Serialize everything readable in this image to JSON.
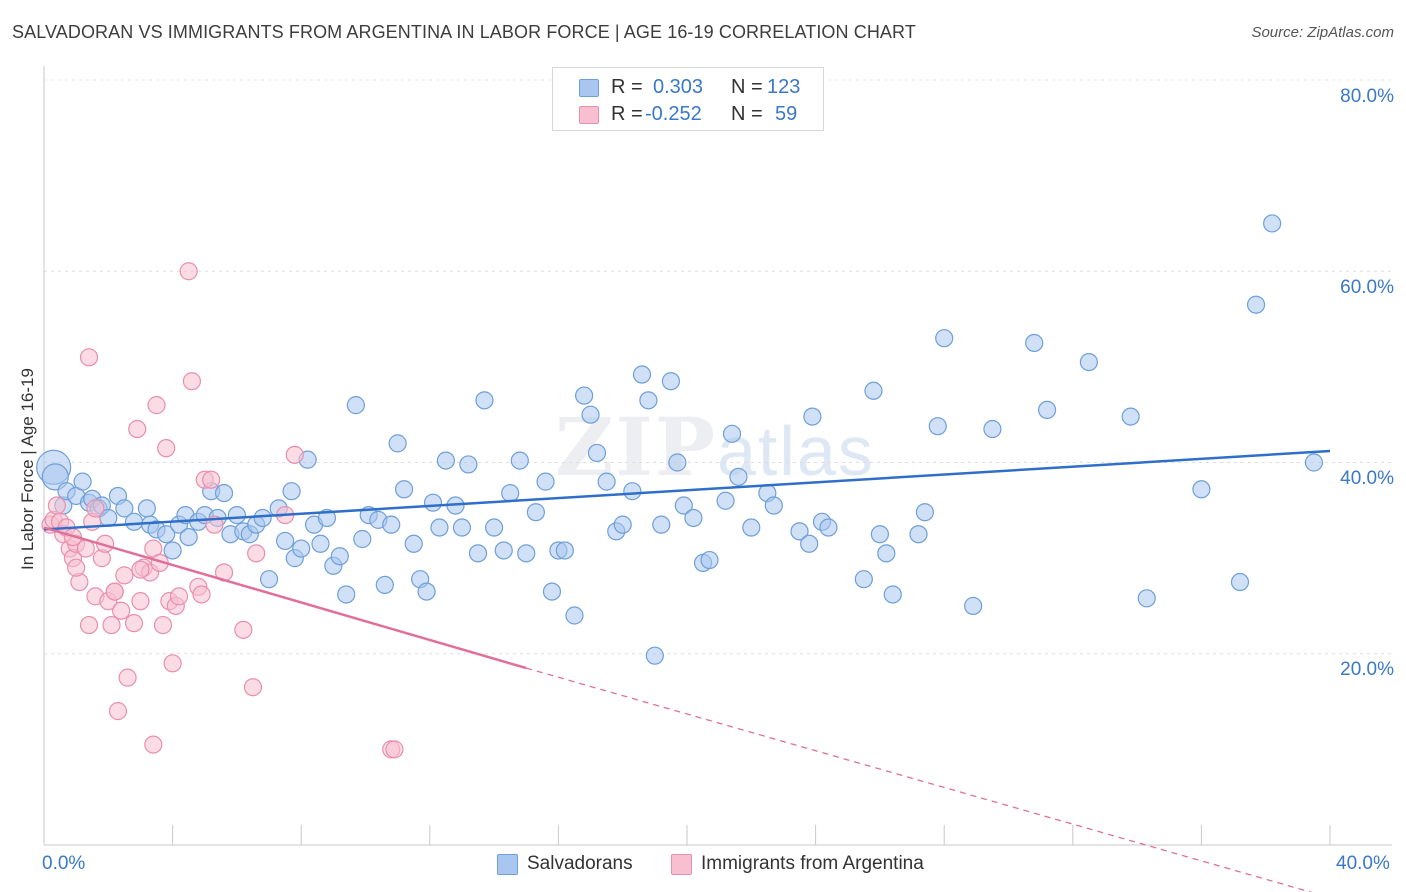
{
  "title": "SALVADORAN VS IMMIGRANTS FROM ARGENTINA IN LABOR FORCE | AGE 16-19 CORRELATION CHART",
  "source": "Source: ZipAtlas.com",
  "watermark": {
    "zip": "ZIP",
    "atlas": "atlas"
  },
  "legend_top": {
    "rows": [
      {
        "r_label": "R =",
        "r_value": "0.303",
        "n_label": "N =",
        "n_value": "123",
        "color": "#a9c6f0",
        "border": "#6f9fd8"
      },
      {
        "r_label": "R =",
        "r_value": "-0.252",
        "n_label": "N =",
        "n_value": "59",
        "color": "#f7bfd0",
        "border": "#e88fae"
      }
    ]
  },
  "chart_data": {
    "type": "scatter",
    "title": "SALVADORAN VS IMMIGRANTS FROM ARGENTINA IN LABOR FORCE | AGE 16-19 CORRELATION CHART",
    "xlabel": "",
    "ylabel": "In Labor Force | Age 16-19",
    "xlim": [
      0,
      40
    ],
    "ylim": [
      0,
      80
    ],
    "x_tick_labels": [
      "0.0%",
      "40.0%"
    ],
    "y_tick_labels": [
      "20.0%",
      "40.0%",
      "60.0%",
      "80.0%"
    ],
    "y_tick_values": [
      20,
      40,
      60,
      80
    ],
    "grid": true,
    "legend": "bottom-center",
    "series": [
      {
        "name": "Salvadorans",
        "color": "#a9c6f0",
        "stroke": "#6f9fd8",
        "trend_color": "#2f6fc9",
        "trend": {
          "x0": 0,
          "y0": 33,
          "x1": 40,
          "y1": 41.2
        },
        "points": [
          [
            0.3,
            39.5
          ],
          [
            0.35,
            38.5
          ],
          [
            0.6,
            35.5
          ],
          [
            0.7,
            37
          ],
          [
            1.0,
            36.5
          ],
          [
            1.2,
            38
          ],
          [
            1.4,
            35.8
          ],
          [
            1.5,
            36.2
          ],
          [
            1.7,
            35.2
          ],
          [
            1.8,
            35.5
          ],
          [
            2.0,
            34.2
          ],
          [
            2.3,
            36.5
          ],
          [
            2.5,
            35.2
          ],
          [
            2.8,
            33.8
          ],
          [
            3.2,
            35.2
          ],
          [
            3.3,
            33.5
          ],
          [
            3.5,
            33
          ],
          [
            3.8,
            32.5
          ],
          [
            4.0,
            30.8
          ],
          [
            4.2,
            33.5
          ],
          [
            4.4,
            34.5
          ],
          [
            4.5,
            32.2
          ],
          [
            4.8,
            33.8
          ],
          [
            5.0,
            34.5
          ],
          [
            5.2,
            37
          ],
          [
            5.4,
            34.2
          ],
          [
            5.6,
            36.8
          ],
          [
            5.8,
            32.5
          ],
          [
            6.0,
            34.5
          ],
          [
            6.2,
            32.8
          ],
          [
            6.4,
            32.5
          ],
          [
            6.6,
            33.5
          ],
          [
            6.8,
            34.2
          ],
          [
            7.0,
            27.8
          ],
          [
            7.3,
            35.2
          ],
          [
            7.5,
            31.8
          ],
          [
            7.7,
            37
          ],
          [
            7.8,
            30
          ],
          [
            8.0,
            31
          ],
          [
            8.2,
            40.3
          ],
          [
            8.4,
            33.5
          ],
          [
            8.6,
            31.5
          ],
          [
            8.8,
            34.2
          ],
          [
            9.0,
            29.2
          ],
          [
            9.2,
            30.2
          ],
          [
            9.4,
            26.2
          ],
          [
            9.7,
            46
          ],
          [
            9.9,
            32
          ],
          [
            10.1,
            34.5
          ],
          [
            10.4,
            34
          ],
          [
            10.6,
            27.2
          ],
          [
            10.8,
            33.5
          ],
          [
            11.0,
            42
          ],
          [
            11.2,
            37.2
          ],
          [
            11.5,
            31.5
          ],
          [
            11.7,
            27.8
          ],
          [
            11.9,
            26.5
          ],
          [
            12.1,
            35.8
          ],
          [
            12.3,
            33.2
          ],
          [
            12.5,
            40.2
          ],
          [
            12.8,
            35.5
          ],
          [
            13.0,
            33.2
          ],
          [
            13.2,
            39.8
          ],
          [
            13.5,
            30.5
          ],
          [
            13.7,
            46.5
          ],
          [
            14.0,
            33.2
          ],
          [
            14.3,
            30.8
          ],
          [
            14.5,
            36.8
          ],
          [
            14.8,
            40.2
          ],
          [
            15.0,
            30.5
          ],
          [
            15.3,
            34.8
          ],
          [
            15.6,
            38
          ],
          [
            15.8,
            26.5
          ],
          [
            16.0,
            30.8
          ],
          [
            16.2,
            30.8
          ],
          [
            16.5,
            24
          ],
          [
            16.8,
            47
          ],
          [
            17.0,
            45
          ],
          [
            17.2,
            41
          ],
          [
            17.5,
            38
          ],
          [
            17.8,
            32.8
          ],
          [
            18.0,
            33.5
          ],
          [
            18.3,
            37
          ],
          [
            18.6,
            49.2
          ],
          [
            18.8,
            46.5
          ],
          [
            19.0,
            19.8
          ],
          [
            19.2,
            33.5
          ],
          [
            19.5,
            48.5
          ],
          [
            19.7,
            40
          ],
          [
            19.9,
            35.5
          ],
          [
            20.2,
            34.2
          ],
          [
            20.5,
            29.5
          ],
          [
            20.7,
            29.8
          ],
          [
            21.2,
            36
          ],
          [
            21.4,
            43
          ],
          [
            21.6,
            38.5
          ],
          [
            22.0,
            33.2
          ],
          [
            22.5,
            36.8
          ],
          [
            22.7,
            35.5
          ],
          [
            23.5,
            32.8
          ],
          [
            23.8,
            31.5
          ],
          [
            23.9,
            44.8
          ],
          [
            24.2,
            33.8
          ],
          [
            24.4,
            33.2
          ],
          [
            25.5,
            27.8
          ],
          [
            25.8,
            47.5
          ],
          [
            26.0,
            32.5
          ],
          [
            26.2,
            30.5
          ],
          [
            26.4,
            26.2
          ],
          [
            27.2,
            32.5
          ],
          [
            27.4,
            34.8
          ],
          [
            27.8,
            43.8
          ],
          [
            28.0,
            53
          ],
          [
            28.9,
            25
          ],
          [
            29.5,
            43.5
          ],
          [
            30.8,
            52.5
          ],
          [
            31.2,
            45.5
          ],
          [
            32.5,
            50.5
          ],
          [
            33.8,
            44.8
          ],
          [
            34.3,
            25.8
          ],
          [
            36.0,
            37.2
          ],
          [
            37.2,
            27.5
          ],
          [
            37.7,
            56.5
          ],
          [
            38.2,
            65
          ],
          [
            39.5,
            40
          ]
        ]
      },
      {
        "name": "Immigrants from Argentina",
        "color": "#f7bfd0",
        "stroke": "#e88fae",
        "trend_color": "#e0709a",
        "trend": {
          "x0": 0,
          "y0": 33.2,
          "x1": 15,
          "y1": 18.5
        },
        "trend_dashed": {
          "x0": 15,
          "y0": 18.5,
          "x1": 40,
          "y1": -5.5
        },
        "points": [
          [
            0.2,
            33.5
          ],
          [
            0.3,
            34
          ],
          [
            0.4,
            35.5
          ],
          [
            0.5,
            33.8
          ],
          [
            0.6,
            32.5
          ],
          [
            0.7,
            33.2
          ],
          [
            0.8,
            31
          ],
          [
            0.9,
            30
          ],
          [
            1.0,
            31.5
          ],
          [
            1.1,
            27.5
          ],
          [
            1.3,
            31
          ],
          [
            1.4,
            23
          ],
          [
            1.5,
            33.8
          ],
          [
            1.6,
            35.2
          ],
          [
            1.6,
            26
          ],
          [
            1.8,
            30
          ],
          [
            1.9,
            31.5
          ],
          [
            2.0,
            25.5
          ],
          [
            2.1,
            23
          ],
          [
            2.2,
            26.5
          ],
          [
            2.3,
            14
          ],
          [
            2.4,
            24.5
          ],
          [
            2.5,
            28.2
          ],
          [
            2.6,
            17.5
          ],
          [
            2.8,
            23.2
          ],
          [
            2.9,
            43.5
          ],
          [
            3.0,
            25.5
          ],
          [
            3.1,
            29
          ],
          [
            3.3,
            28.5
          ],
          [
            3.4,
            31
          ],
          [
            3.5,
            46
          ],
          [
            3.6,
            29.5
          ],
          [
            3.7,
            23
          ],
          [
            3.8,
            41.5
          ],
          [
            3.9,
            25.5
          ],
          [
            4.0,
            19
          ],
          [
            4.1,
            25
          ],
          [
            4.2,
            26
          ],
          [
            4.5,
            60
          ],
          [
            4.6,
            48.5
          ],
          [
            4.8,
            27
          ],
          [
            4.9,
            26.2
          ],
          [
            5.0,
            38.2
          ],
          [
            5.2,
            38.2
          ],
          [
            5.3,
            33.5
          ],
          [
            5.6,
            28.5
          ],
          [
            6.2,
            22.5
          ],
          [
            6.5,
            16.5
          ],
          [
            6.6,
            30.5
          ],
          [
            7.5,
            34.5
          ],
          [
            7.8,
            40.8
          ],
          [
            10.8,
            10
          ],
          [
            10.9,
            10
          ],
          [
            1.4,
            51
          ],
          [
            3.4,
            10.5
          ],
          [
            2.2,
            26.5
          ],
          [
            1.0,
            29
          ],
          [
            0.9,
            32.2
          ],
          [
            3.0,
            28.8
          ]
        ]
      }
    ]
  },
  "legend_bottom": [
    {
      "label": "Salvadorans",
      "color": "#a9c6f0",
      "border": "#6f9fd8"
    },
    {
      "label": "Immigrants from Argentina",
      "color": "#f7bfd0",
      "border": "#e88fae"
    }
  ]
}
